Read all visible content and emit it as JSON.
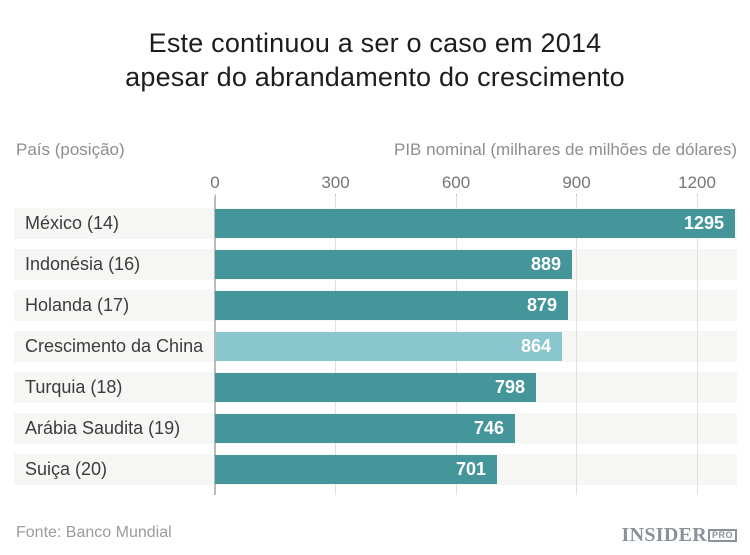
{
  "title": {
    "line1": "Este continuou a ser o caso em 2014",
    "line2": "apesar do abrandamento do crescimento"
  },
  "axis_header": {
    "left": "País (posição)",
    "right": "PIB nominal (milhares de milhões de dólares)"
  },
  "chart_data": {
    "type": "bar",
    "orientation": "horizontal",
    "title": "Este continuou a ser o caso em 2014 apesar do abrandamento do crescimento",
    "ylabel": "País (posição)",
    "xlabel": "PIB nominal (milhares de milhões de dólares)",
    "categories": [
      "México (14)",
      "Indonésia (16)",
      "Holanda (17)",
      "Crescimento da China",
      "Turquia (18)",
      "Arábia Saudita (19)",
      "Suiça (20)"
    ],
    "values": [
      1295,
      889,
      879,
      864,
      798,
      746,
      701
    ],
    "highlight_index": 3,
    "highlight_category": "Crescimento da China",
    "x_ticks": [
      0,
      300,
      600,
      900,
      1200
    ],
    "xlim": [
      0,
      1300
    ],
    "grid": true,
    "legend": false,
    "value_labels": "inside-end",
    "source": "Fonte: Banco Mundial"
  },
  "footer": {
    "source": "Fonte: Banco Mundial",
    "logo_text": "INSIDER",
    "logo_badge": "PRO"
  },
  "colors": {
    "background": "#ffffff",
    "bar": "#45969b",
    "bar_highlight": "#8ac6ce",
    "row_background": "#f6f6f4",
    "grid_line": "#e0e0e0",
    "axis_line": "#bababa",
    "tick_mark": "#c4c4c4",
    "title_text": "#1d1d1d",
    "header_text": "#8e8e8e",
    "tick_text": "#757575",
    "label_text": "#3c3c3c",
    "value_text": "#ffffff",
    "footer_text": "#9b9b9b",
    "logo": "#8b919a"
  }
}
